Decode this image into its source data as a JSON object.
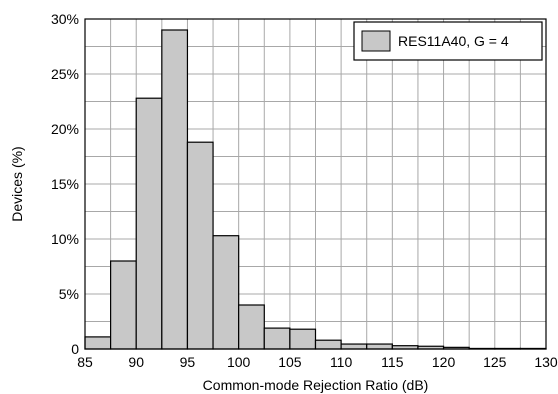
{
  "chart_data": {
    "type": "bar",
    "title": "",
    "xlabel": "Common-mode Rejection Ratio (dB)",
    "ylabel": "Devices (%)",
    "xlim": [
      85,
      130
    ],
    "ylim": [
      0,
      30
    ],
    "x_ticks": [
      85,
      90,
      95,
      100,
      105,
      110,
      115,
      120,
      125,
      130
    ],
    "x_tick_labels": [
      "85",
      "90",
      "95",
      "100",
      "105",
      "110",
      "115",
      "120",
      "125",
      "130"
    ],
    "y_ticks": [
      0,
      5,
      10,
      15,
      20,
      25,
      30
    ],
    "y_tick_labels": [
      "0",
      "5%",
      "10%",
      "15%",
      "20%",
      "25%",
      "30%"
    ],
    "bin_width": 2.5,
    "bin_starts": [
      85,
      87.5,
      90,
      92.5,
      95,
      97.5,
      100,
      102.5,
      105,
      107.5,
      110,
      112.5,
      115,
      117.5,
      120,
      122.5,
      125,
      127.5
    ],
    "series": [
      {
        "name": "RES11A40, G = 4",
        "color": "#c8c8c8",
        "values": [
          1.1,
          8.0,
          22.8,
          29.0,
          18.8,
          10.3,
          4.0,
          1.9,
          1.8,
          0.8,
          0.45,
          0.45,
          0.3,
          0.25,
          0.15,
          0.05,
          0.05,
          0.05
        ]
      }
    ],
    "grid": true,
    "legend_position": "top-right"
  }
}
